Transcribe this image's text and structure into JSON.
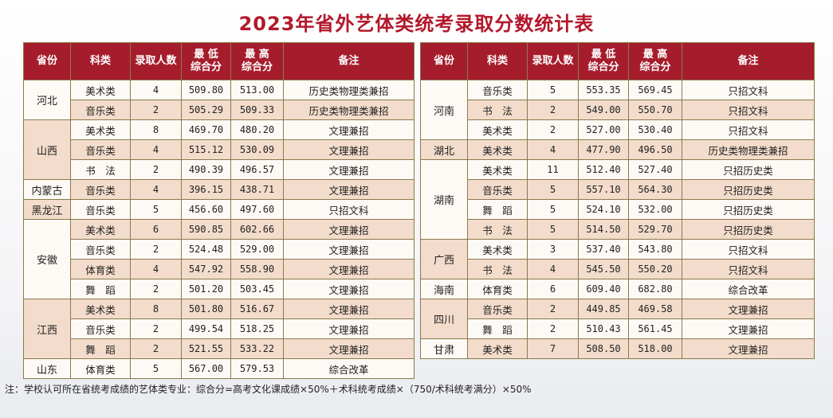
{
  "title": "2023年省外艺体类统考录取分数统计表",
  "headers": {
    "province": "省份",
    "subject": "科类",
    "admitted": "录取人数",
    "min_score": "最 低\n综合分",
    "max_score": "最 高\n综合分",
    "remark": "备注"
  },
  "left_groups": [
    {
      "province": "河北",
      "rows": [
        {
          "subject": "美术类",
          "admitted": "4",
          "min": "509.80",
          "max": "513.00",
          "remark": "历史类物理类兼招"
        },
        {
          "subject": "音乐类",
          "admitted": "2",
          "min": "505.29",
          "max": "509.33",
          "remark": "历史类物理类兼招"
        }
      ]
    },
    {
      "province": "山西",
      "rows": [
        {
          "subject": "美术类",
          "admitted": "8",
          "min": "469.70",
          "max": "480.20",
          "remark": "文理兼招"
        },
        {
          "subject": "音乐类",
          "admitted": "4",
          "min": "515.12",
          "max": "530.09",
          "remark": "文理兼招"
        },
        {
          "subject": "书　法",
          "admitted": "2",
          "min": "490.39",
          "max": "496.57",
          "remark": "文理兼招"
        }
      ]
    },
    {
      "province": "内蒙古",
      "rows": [
        {
          "subject": "音乐类",
          "admitted": "4",
          "min": "396.15",
          "max": "438.71",
          "remark": "文理兼招"
        }
      ]
    },
    {
      "province": "黑龙江",
      "rows": [
        {
          "subject": "音乐类",
          "admitted": "5",
          "min": "456.60",
          "max": "497.60",
          "remark": "只招文科"
        }
      ]
    },
    {
      "province": "安徽",
      "rows": [
        {
          "subject": "美术类",
          "admitted": "6",
          "min": "590.85",
          "max": "602.66",
          "remark": "文理兼招"
        },
        {
          "subject": "音乐类",
          "admitted": "2",
          "min": "524.48",
          "max": "529.00",
          "remark": "文理兼招"
        },
        {
          "subject": "体育类",
          "admitted": "4",
          "min": "547.92",
          "max": "558.90",
          "remark": "文理兼招"
        },
        {
          "subject": "舞　蹈",
          "admitted": "2",
          "min": "501.20",
          "max": "503.45",
          "remark": "文理兼招"
        }
      ]
    },
    {
      "province": "江西",
      "rows": [
        {
          "subject": "美术类",
          "admitted": "8",
          "min": "501.80",
          "max": "516.67",
          "remark": "文理兼招"
        },
        {
          "subject": "音乐类",
          "admitted": "2",
          "min": "499.54",
          "max": "518.25",
          "remark": "文理兼招"
        },
        {
          "subject": "舞　蹈",
          "admitted": "2",
          "min": "521.55",
          "max": "533.22",
          "remark": "文理兼招"
        }
      ]
    },
    {
      "province": "山东",
      "rows": [
        {
          "subject": "体育类",
          "admitted": "5",
          "min": "567.00",
          "max": "579.53",
          "remark": "综合改革"
        }
      ]
    }
  ],
  "right_groups": [
    {
      "province": "河南",
      "rows": [
        {
          "subject": "音乐类",
          "admitted": "5",
          "min": "553.35",
          "max": "569.45",
          "remark": "只招文科"
        },
        {
          "subject": "书　法",
          "admitted": "2",
          "min": "549.00",
          "max": "550.70",
          "remark": "只招文科"
        },
        {
          "subject": "美术类",
          "admitted": "2",
          "min": "527.00",
          "max": "530.40",
          "remark": "只招文科"
        }
      ]
    },
    {
      "province": "湖北",
      "rows": [
        {
          "subject": "美术类",
          "admitted": "4",
          "min": "477.90",
          "max": "496.50",
          "remark": "历史类物理类兼招"
        }
      ]
    },
    {
      "province": "湖南",
      "rows": [
        {
          "subject": "美术类",
          "admitted": "11",
          "min": "512.40",
          "max": "527.40",
          "remark": "只招历史类"
        },
        {
          "subject": "音乐类",
          "admitted": "5",
          "min": "557.10",
          "max": "564.30",
          "remark": "只招历史类"
        },
        {
          "subject": "舞　蹈",
          "admitted": "5",
          "min": "524.10",
          "max": "532.00",
          "remark": "只招历史类"
        },
        {
          "subject": "书　法",
          "admitted": "5",
          "min": "514.50",
          "max": "529.70",
          "remark": "只招历史类"
        }
      ]
    },
    {
      "province": "广西",
      "rows": [
        {
          "subject": "美术类",
          "admitted": "3",
          "min": "537.40",
          "max": "543.80",
          "remark": "只招文科"
        },
        {
          "subject": "书　法",
          "admitted": "4",
          "min": "545.50",
          "max": "550.20",
          "remark": "只招文科"
        }
      ]
    },
    {
      "province": "海南",
      "rows": [
        {
          "subject": "体育类",
          "admitted": "6",
          "min": "609.40",
          "max": "682.80",
          "remark": "综合改革"
        }
      ]
    },
    {
      "province": "四川",
      "rows": [
        {
          "subject": "音乐类",
          "admitted": "2",
          "min": "449.85",
          "max": "469.58",
          "remark": "文理兼招"
        },
        {
          "subject": "舞　蹈",
          "admitted": "2",
          "min": "510.43",
          "max": "561.45",
          "remark": "文理兼招"
        }
      ]
    },
    {
      "province": "甘肃",
      "rows": [
        {
          "subject": "美术类",
          "admitted": "7",
          "min": "508.50",
          "max": "518.00",
          "remark": "文理兼招"
        }
      ]
    }
  ],
  "footnote": "注：学校认可所在省统考成绩的艺体类专业：综合分=高考文化课成绩×50%＋术科统考成绩×（750/术科统考满分）×50%"
}
